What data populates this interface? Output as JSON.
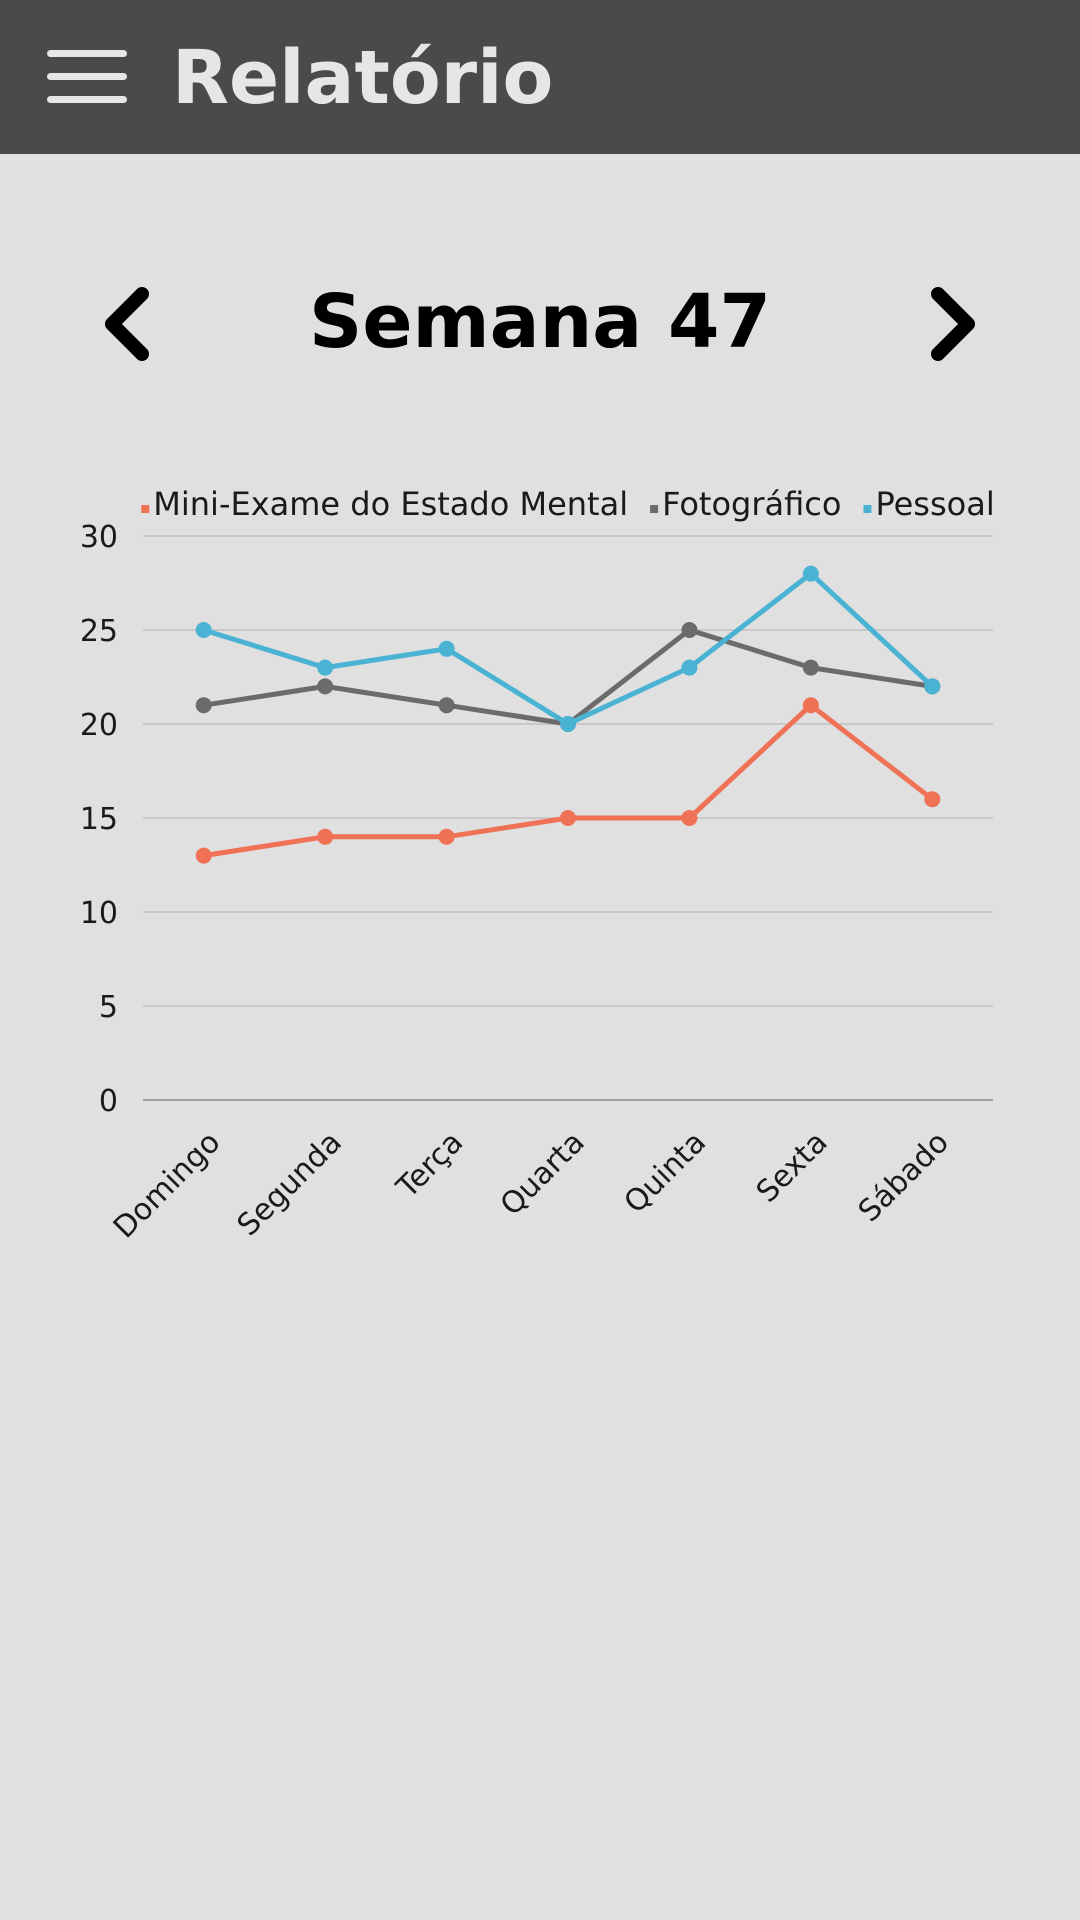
{
  "app_bar": {
    "title": "Relatório",
    "menu_icon": "hamburger-menu-icon"
  },
  "week_nav": {
    "title": "Semana 47",
    "prev_icon": "chevron-left-icon",
    "next_icon": "chevron-right-icon"
  },
  "chart_data": {
    "type": "line",
    "categories": [
      "Domingo",
      "Segunda",
      "Terça",
      "Quarta",
      "Quinta",
      "Sexta",
      "Sábado"
    ],
    "series": [
      {
        "name": "Mini-Exame do Estado Mental",
        "color": "#ef7156",
        "values": [
          13,
          14,
          14,
          15,
          15,
          21,
          16
        ]
      },
      {
        "name": "Fotográfico",
        "color": "#6b6b6b",
        "values": [
          21,
          22,
          21,
          20,
          25,
          23,
          22
        ]
      },
      {
        "name": "Pessoal",
        "color": "#4ab3d3",
        "values": [
          25,
          23,
          24,
          20,
          23,
          28,
          22
        ]
      }
    ],
    "yticks": [
      0,
      5,
      10,
      15,
      20,
      25,
      30
    ],
    "ylim": [
      0,
      30
    ],
    "grid": true,
    "legend_position": "top"
  }
}
